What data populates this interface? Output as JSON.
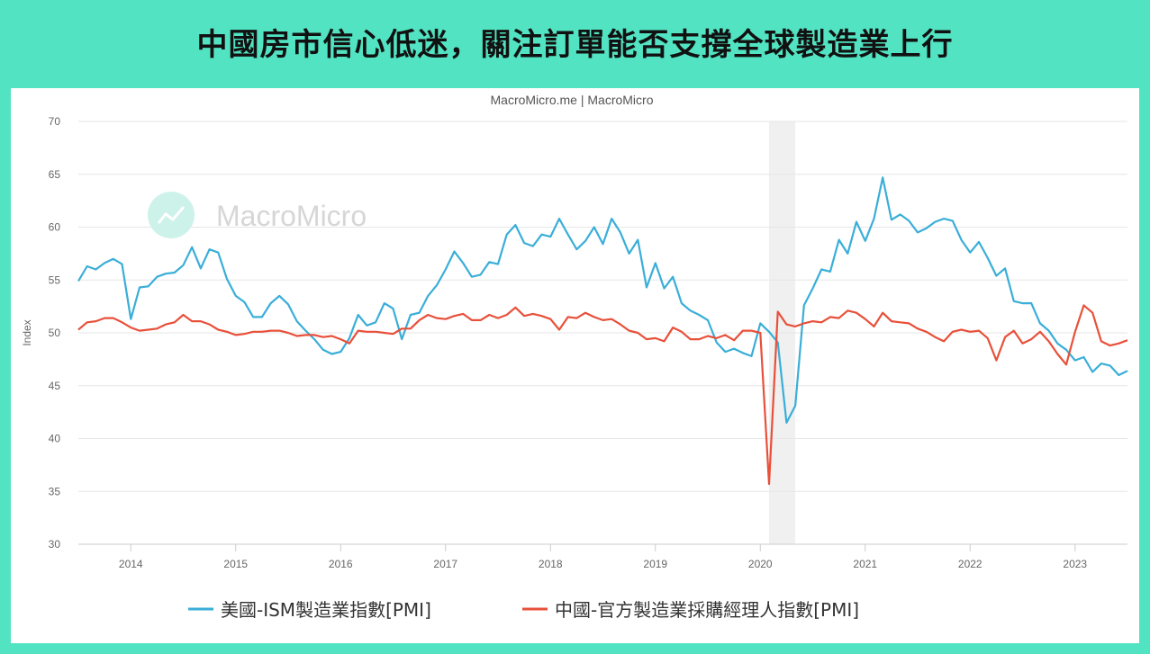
{
  "title": "中國房市信心低迷，關注訂單能否支撐全球製造業上行",
  "chart_data": {
    "type": "line",
    "subtitle": "MacroMicro.me | MacroMicro",
    "watermark": "MacroMicro",
    "ylabel": "Index",
    "ylim": [
      30,
      70
    ],
    "yticks": [
      30,
      35,
      40,
      45,
      50,
      55,
      60,
      65,
      70
    ],
    "x_start": "2013-07",
    "x_end": "2023-07",
    "xticks": [
      "2014",
      "2015",
      "2016",
      "2017",
      "2018",
      "2019",
      "2020",
      "2021",
      "2022",
      "2023"
    ],
    "grid": true,
    "legend": "bottom",
    "shaded_period": [
      "2020-02",
      "2020-04"
    ],
    "series": [
      {
        "name": "美國-ISM製造業指數[PMI]",
        "color": "#3aaed8",
        "values": [
          54.9,
          56.3,
          56.0,
          56.6,
          57.0,
          56.5,
          51.3,
          54.3,
          54.4,
          55.3,
          55.6,
          55.7,
          56.4,
          58.1,
          56.1,
          57.9,
          57.6,
          55.1,
          53.5,
          52.9,
          51.5,
          51.5,
          52.8,
          53.5,
          52.7,
          51.1,
          50.2,
          49.4,
          48.4,
          48.0,
          48.2,
          49.5,
          51.7,
          50.7,
          51.0,
          52.8,
          52.3,
          49.4,
          51.7,
          51.9,
          53.5,
          54.5,
          56.0,
          57.7,
          56.6,
          55.3,
          55.5,
          56.7,
          56.5,
          59.3,
          60.2,
          58.5,
          58.2,
          59.3,
          59.1,
          60.8,
          59.3,
          57.9,
          58.7,
          60.0,
          58.4,
          60.8,
          59.5,
          57.5,
          58.8,
          54.3,
          56.6,
          54.2,
          55.3,
          52.8,
          52.1,
          51.7,
          51.2,
          49.1,
          48.2,
          48.5,
          48.1,
          47.8,
          50.9,
          50.1,
          49.1,
          41.5,
          43.1,
          52.6,
          54.2,
          56.0,
          55.8,
          58.8,
          57.5,
          60.5,
          58.7,
          60.8,
          64.7,
          60.7,
          61.2,
          60.6,
          59.5,
          59.9,
          60.5,
          60.8,
          60.6,
          58.8,
          57.6,
          58.6,
          57.1,
          55.4,
          56.1,
          53.0,
          52.8,
          52.8,
          50.9,
          50.2,
          49.0,
          48.4,
          47.4,
          47.7,
          46.3,
          47.1,
          46.9,
          46.0,
          46.4
        ]
      },
      {
        "name": "中國-官方製造業採購經理人指數[PMI]",
        "color": "#e8503a",
        "values": [
          50.3,
          51.0,
          51.1,
          51.4,
          51.4,
          51.0,
          50.5,
          50.2,
          50.3,
          50.4,
          50.8,
          51.0,
          51.7,
          51.1,
          51.1,
          50.8,
          50.3,
          50.1,
          49.8,
          49.9,
          50.1,
          50.1,
          50.2,
          50.2,
          50.0,
          49.7,
          49.8,
          49.8,
          49.6,
          49.7,
          49.4,
          49.0,
          50.2,
          50.1,
          50.1,
          50.0,
          49.9,
          50.4,
          50.4,
          51.2,
          51.7,
          51.4,
          51.3,
          51.6,
          51.8,
          51.2,
          51.2,
          51.7,
          51.4,
          51.7,
          52.4,
          51.6,
          51.8,
          51.6,
          51.3,
          50.3,
          51.5,
          51.4,
          51.9,
          51.5,
          51.2,
          51.3,
          50.8,
          50.2,
          50.0,
          49.4,
          49.5,
          49.2,
          50.5,
          50.1,
          49.4,
          49.4,
          49.7,
          49.5,
          49.8,
          49.3,
          50.2,
          50.2,
          50.0,
          35.7,
          52.0,
          50.8,
          50.6,
          50.9,
          51.1,
          51.0,
          51.5,
          51.4,
          52.1,
          51.9,
          51.3,
          50.6,
          51.9,
          51.1,
          51.0,
          50.9,
          50.4,
          50.1,
          49.6,
          49.2,
          50.1,
          50.3,
          50.1,
          50.2,
          49.5,
          47.4,
          49.6,
          50.2,
          49.0,
          49.4,
          50.1,
          49.2,
          48.0,
          47.0,
          50.1,
          52.6,
          51.9,
          49.2,
          48.8,
          49.0,
          49.3
        ]
      }
    ]
  }
}
